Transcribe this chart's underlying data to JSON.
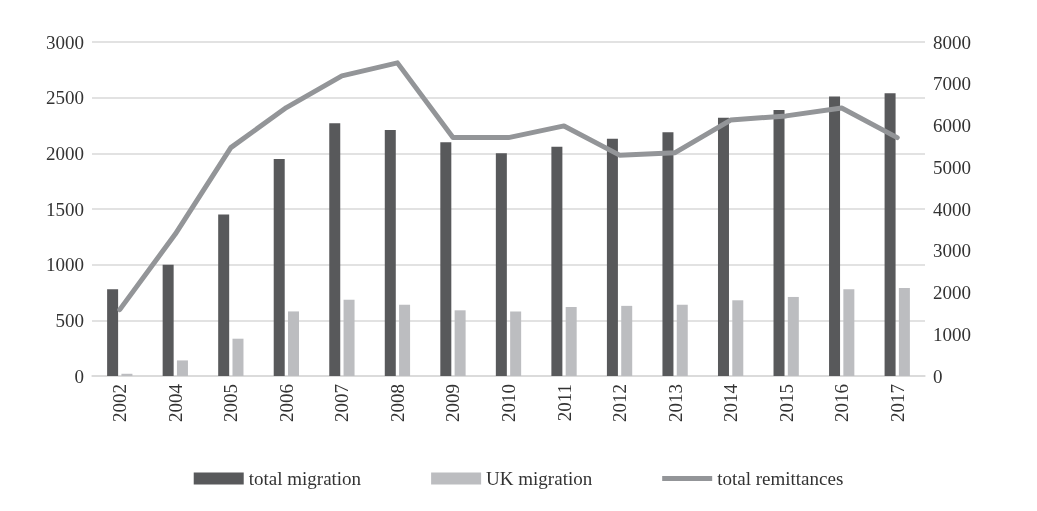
{
  "chart_data": {
    "type": "bar",
    "categories": [
      "2002",
      "2004",
      "2005",
      "2006",
      "2007",
      "2008",
      "2009",
      "2010",
      "2011",
      "2012",
      "2013",
      "2014",
      "2015",
      "2016",
      "2017"
    ],
    "series": [
      {
        "name": "total migration",
        "color": "#58595b",
        "values": [
          780,
          1000,
          1450,
          1950,
          2270,
          2210,
          2100,
          2000,
          2060,
          2130,
          2190,
          2320,
          2390,
          2510,
          2540
        ]
      },
      {
        "name": "UK migration",
        "color": "#bcbdc0",
        "values": [
          20,
          140,
          335,
          580,
          685,
          640,
          590,
          580,
          620,
          630,
          640,
          680,
          710,
          780,
          790
        ]
      },
      {
        "name": "total remittances",
        "type": "line",
        "axis": "y2",
        "color": "#939598",
        "values": [
          1590,
          3400,
          5470,
          6430,
          7190,
          7500,
          5710,
          5710,
          5990,
          5290,
          5350,
          6130,
          6230,
          6420,
          5710
        ]
      }
    ],
    "ylim": [
      0,
      3000
    ],
    "yticks": [
      0,
      500,
      1000,
      1500,
      2000,
      2500,
      3000
    ],
    "y2lim": [
      0,
      8000
    ],
    "y2ticks": [
      0,
      1000,
      2000,
      3000,
      4000,
      5000,
      6000,
      7000,
      8000
    ],
    "grid": "y",
    "legend": "bottom",
    "marker": "none"
  }
}
